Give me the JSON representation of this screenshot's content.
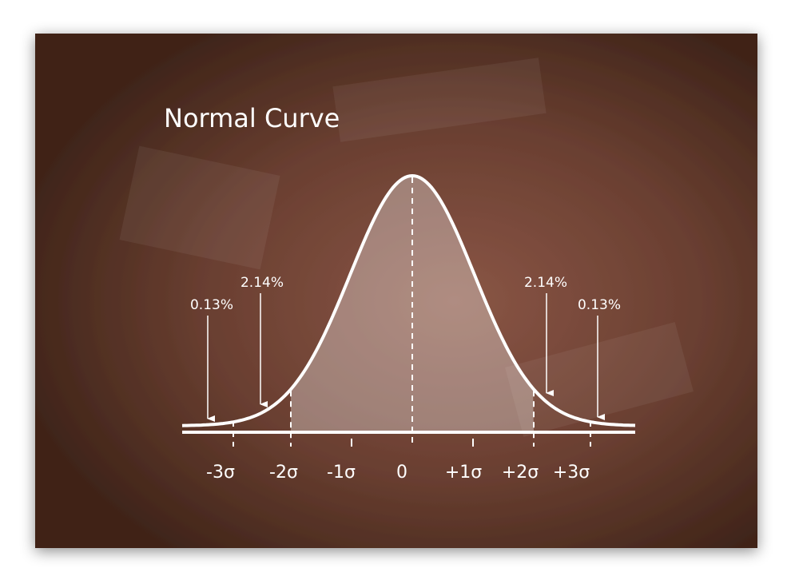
{
  "title": "Normal Curve",
  "axis_labels": [
    "-3σ",
    "-2σ",
    "-1σ",
    "0",
    "+1σ",
    "+2σ",
    "+3σ"
  ],
  "annotations": [
    {
      "label": "0.13%"
    },
    {
      "label": "2.14%"
    },
    {
      "label": "2.14%"
    },
    {
      "label": "0.13%"
    }
  ]
}
